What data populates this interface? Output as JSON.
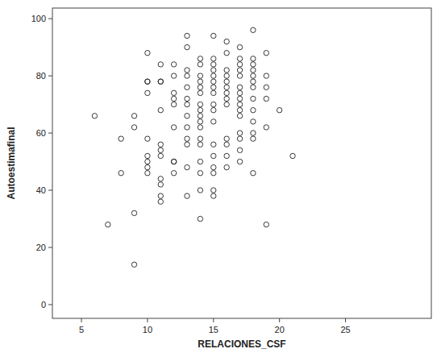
{
  "chart_data": {
    "type": "scatter",
    "x_label": "RELACIONES_CSF",
    "y_label": "Autoestimafinal",
    "x": [
      6,
      7,
      8,
      8,
      9,
      9,
      9,
      9,
      10,
      10,
      10,
      10,
      10,
      10,
      10,
      10,
      10,
      11,
      11,
      11,
      11,
      11,
      11,
      11,
      11,
      11,
      11,
      11,
      12,
      12,
      12,
      12,
      12,
      12,
      12,
      12,
      12,
      13,
      13,
      13,
      13,
      13,
      13,
      13,
      13,
      13,
      13,
      13,
      13,
      13,
      14,
      14,
      14,
      14,
      14,
      14,
      14,
      14,
      14,
      14,
      14,
      14,
      14,
      14,
      14,
      14,
      14,
      15,
      15,
      15,
      15,
      15,
      15,
      15,
      15,
      15,
      15,
      15,
      15,
      15,
      15,
      15,
      15,
      15,
      16,
      16,
      16,
      16,
      16,
      16,
      16,
      16,
      16,
      16,
      16,
      16,
      16,
      17,
      17,
      17,
      17,
      17,
      17,
      17,
      17,
      17,
      17,
      17,
      17,
      17,
      17,
      17,
      18,
      18,
      18,
      18,
      18,
      18,
      18,
      18,
      18,
      18,
      18,
      18,
      18,
      19,
      19,
      19,
      19,
      19,
      19,
      20,
      21
    ],
    "values": [
      66,
      28,
      58,
      46,
      66,
      62,
      32,
      14,
      88,
      78,
      78,
      74,
      58,
      52,
      50,
      48,
      46,
      84,
      78,
      78,
      68,
      56,
      54,
      52,
      44,
      42,
      38,
      36,
      84,
      80,
      74,
      72,
      70,
      62,
      50,
      50,
      46,
      94,
      90,
      82,
      80,
      76,
      72,
      70,
      66,
      62,
      58,
      56,
      48,
      38,
      86,
      84,
      80,
      78,
      76,
      74,
      70,
      68,
      66,
      64,
      62,
      58,
      56,
      50,
      46,
      40,
      30,
      94,
      86,
      84,
      82,
      80,
      78,
      76,
      74,
      70,
      68,
      64,
      56,
      52,
      48,
      46,
      40,
      38,
      92,
      88,
      82,
      80,
      78,
      76,
      74,
      72,
      70,
      58,
      56,
      52,
      48,
      90,
      86,
      84,
      82,
      80,
      76,
      74,
      72,
      70,
      68,
      66,
      60,
      58,
      54,
      50,
      96,
      86,
      84,
      82,
      80,
      78,
      76,
      72,
      68,
      64,
      60,
      58,
      46,
      88,
      80,
      76,
      72,
      62,
      28,
      68,
      52
    ],
    "xlim": [
      2.8,
      31.5
    ],
    "ylim": [
      -4.8,
      103.7
    ],
    "xticks": [
      5,
      10,
      15,
      20,
      25
    ],
    "yticks": [
      0,
      20,
      40,
      60,
      80,
      100
    ],
    "color": "#222222",
    "marker": "circle-open",
    "grid": false
  }
}
